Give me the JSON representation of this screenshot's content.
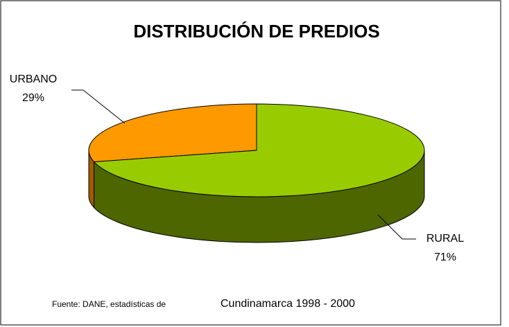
{
  "chart_data": {
    "type": "pie3d",
    "title": "DISTRIBUCIÓN DE PREDIOS",
    "categories": [
      "URBANO",
      "RURAL"
    ],
    "values": [
      29,
      71
    ],
    "value_labels": [
      "29%",
      "71%"
    ],
    "colors": [
      "#ff9900",
      "#99cc00"
    ],
    "side_colors": [
      "#a35a00",
      "#4d6600"
    ],
    "source": [
      "Fuente: DANE, estadísticas de",
      "Cundinamarca 1998 - 2000"
    ]
  }
}
